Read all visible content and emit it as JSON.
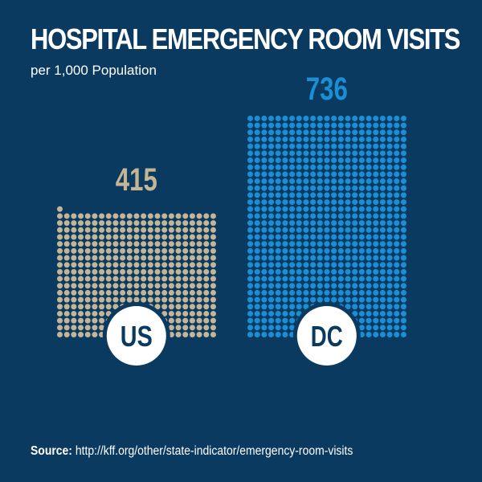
{
  "chart_data": {
    "type": "bar",
    "title": "HOSPITAL EMERGENCY ROOM VISITS",
    "subtitle": "per 1,000 Population",
    "categories": [
      "US",
      "DC"
    ],
    "values": [
      415,
      736
    ],
    "value_labels": [
      "415",
      "736"
    ],
    "series_colors": [
      "#c4b596",
      "#1a8fd6"
    ],
    "representation": "dot-grid (one dot per unit)",
    "legend": "none",
    "grid": false
  },
  "source": {
    "label": "Source:",
    "text": " http://kff.org/other/state-indicator/emergency-room-visits"
  },
  "colors": {
    "background": "#0b3a60",
    "text": "#ffffff",
    "badge_fill": "#ffffff",
    "badge_text": "#0b3a60"
  }
}
